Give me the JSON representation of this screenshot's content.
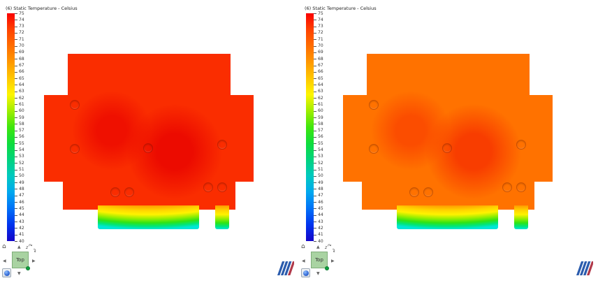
{
  "visualization": {
    "quantity": "Static Temperature",
    "unit": "Celsius",
    "scale_min": 40,
    "scale_max": 75,
    "view_count": 2,
    "view_orientation": "Top"
  },
  "legend": {
    "ticks": [
      75,
      74,
      73,
      72,
      71,
      70,
      69,
      68,
      67,
      66,
      65,
      64,
      63,
      62,
      61,
      60,
      59,
      58,
      57,
      56,
      55,
      54,
      53,
      52,
      51,
      50,
      49,
      48,
      47,
      46,
      45,
      44,
      43,
      42,
      41,
      40
    ],
    "colormap_top_to_bottom": [
      "#fa0200",
      "#ff4200",
      "#ff6d00",
      "#ff9800",
      "#ffc800",
      "#fdf500",
      "#9fee00",
      "#3fe60d",
      "#0edd3d",
      "#01d37e",
      "#00c9c0",
      "#00a8ef",
      "#0071f8",
      "#0033ee",
      "#1506c9"
    ]
  },
  "band_gradient_top_to_bottom": [
    "#ff9800",
    "#ffd400",
    "#fff200",
    "#9bee00",
    "#30e413",
    "#00e579",
    "#00e6d8"
  ],
  "logo_colors": {
    "blue": "#2b5cad",
    "red": "#b0394a"
  },
  "panes": [
    {
      "id": "left",
      "legend_title": "(6) Static Temperature - Celsius",
      "board_color": "#fa2d00",
      "hotspot1_color": "#ef1000",
      "hotspot2_color": "#ec0b00",
      "view_cube": {
        "label": "Top",
        "rotation_axis_label": "z"
      }
    },
    {
      "id": "right",
      "legend_title": "(6) Static Temperature - Celsius",
      "board_color": "#ff7200",
      "hotspot1_color": "#fb4d00",
      "hotspot2_color": "#f83d00",
      "view_cube": {
        "label": "Top",
        "rotation_axis_label": "z"
      }
    }
  ]
}
